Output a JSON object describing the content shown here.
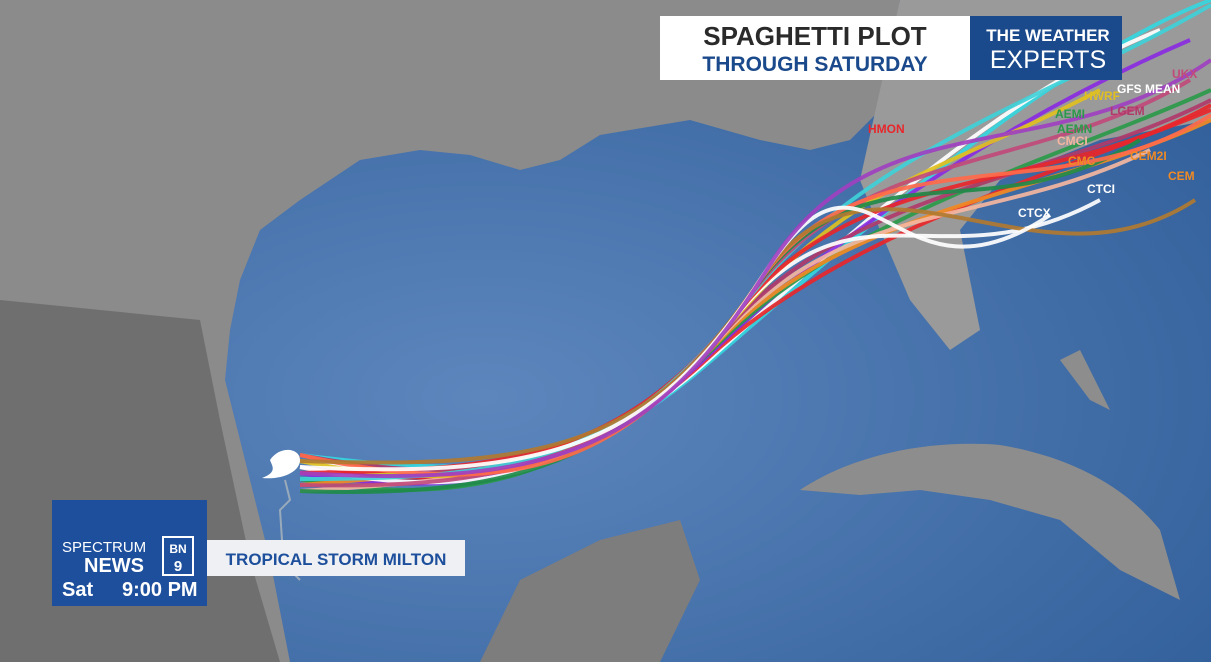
{
  "header": {
    "title": "SPAGHETTI PLOT",
    "subtitle": "THROUGH SATURDAY"
  },
  "brand": {
    "line1": "THE WEATHER",
    "line2": "EXPERTS"
  },
  "station": {
    "name1": "SPECTRUM",
    "name2": "NEWS",
    "badge_top": "BN",
    "badge_bottom": "9",
    "day": "Sat",
    "time": "9:00 PM"
  },
  "storm": {
    "name": "TROPICAL STORM MILTON"
  },
  "models": [
    "HMON",
    "HWRF",
    "GFS MEAN",
    "AEMI",
    "AEMN",
    "LGEM",
    "CMCI",
    "CMC",
    "CEM2I",
    "CEM",
    "CTCI",
    "CTCX",
    "UKX"
  ]
}
